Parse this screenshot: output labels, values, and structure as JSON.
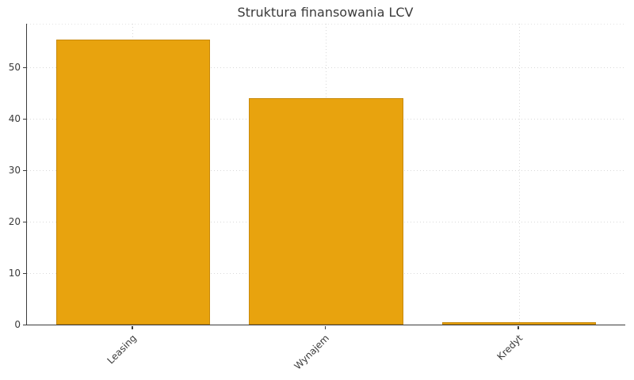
{
  "chart_data": {
    "type": "bar",
    "title": "Struktura finansowania LCV",
    "categories": [
      "Leasing",
      "Wynajem",
      "Kredyt"
    ],
    "values": [
      55.5,
      44,
      0.5
    ],
    "xlabel": "",
    "ylabel": "",
    "ylim": [
      0,
      58.5
    ],
    "yticks": [
      0,
      10,
      20,
      30,
      40,
      50
    ],
    "grid": true,
    "legend": false,
    "x_tick_rotation_deg": 45,
    "colors": {
      "bar_fill": "#e8a30e",
      "bar_edge": "#c8890a",
      "axis": "#3b3b3b",
      "text": "#3a3a3a",
      "grid": "#d9d9d9",
      "background": "#ffffff"
    }
  }
}
